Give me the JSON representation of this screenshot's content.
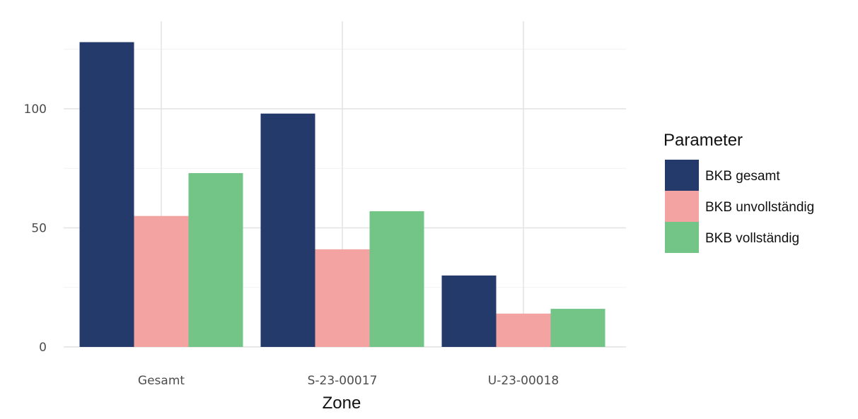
{
  "chart_data": {
    "type": "bar",
    "categories": [
      "Gesamt",
      "S-23-00017",
      "U-23-00018"
    ],
    "series": [
      {
        "name": "BKB gesamt",
        "values": [
          128,
          98,
          30
        ],
        "color": "#243A6B"
      },
      {
        "name": "BKB unvollständig",
        "values": [
          55,
          41,
          14
        ],
        "color": "#F4A3A3"
      },
      {
        "name": "BKB vollständig",
        "values": [
          73,
          57,
          16
        ],
        "color": "#72C487"
      }
    ],
    "title": "",
    "xlabel": "Zone",
    "ylabel": "",
    "ylim": [
      0,
      132
    ],
    "yticks": [
      0,
      50,
      100
    ],
    "grid": true,
    "legend": {
      "title": "Parameter",
      "position": "right"
    }
  }
}
